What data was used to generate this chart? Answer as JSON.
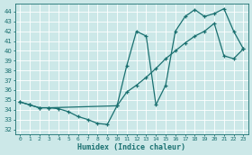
{
  "xlabel": "Humidex (Indice chaleur)",
  "bg_color": "#cce8e8",
  "line_color": "#1a7070",
  "grid_color": "#b8d8d8",
  "xlim": [
    -0.5,
    23.5
  ],
  "ylim": [
    31.5,
    44.8
  ],
  "xticks": [
    0,
    1,
    2,
    3,
    4,
    5,
    6,
    7,
    8,
    9,
    10,
    11,
    12,
    13,
    14,
    15,
    16,
    17,
    18,
    19,
    20,
    21,
    22,
    23
  ],
  "yticks": [
    32,
    33,
    34,
    35,
    36,
    37,
    38,
    39,
    40,
    41,
    42,
    43,
    44
  ],
  "line1_x": [
    0,
    1,
    2,
    3,
    4,
    5,
    6,
    7,
    8,
    9,
    10,
    11,
    12,
    13,
    14,
    15,
    16,
    17,
    18,
    19,
    20,
    21,
    22,
    23
  ],
  "line1_y": [
    34.8,
    34.5,
    34.2,
    34.2,
    34.1,
    33.8,
    33.3,
    33.0,
    32.6,
    32.5,
    34.4,
    35.8,
    36.5,
    37.3,
    38.2,
    39.2,
    40.0,
    40.8,
    41.5,
    42.0,
    42.8,
    39.5,
    39.2,
    40.2
  ],
  "line2_x": [
    0,
    1,
    2,
    3,
    10,
    11,
    12,
    13,
    14,
    15,
    16,
    17,
    18,
    19,
    20,
    21,
    22,
    23
  ],
  "line2_y": [
    34.8,
    34.5,
    34.2,
    34.2,
    34.4,
    38.5,
    42.0,
    41.5,
    34.5,
    36.5,
    42.0,
    43.5,
    44.2,
    43.5,
    43.8,
    44.3,
    42.0,
    40.2
  ]
}
